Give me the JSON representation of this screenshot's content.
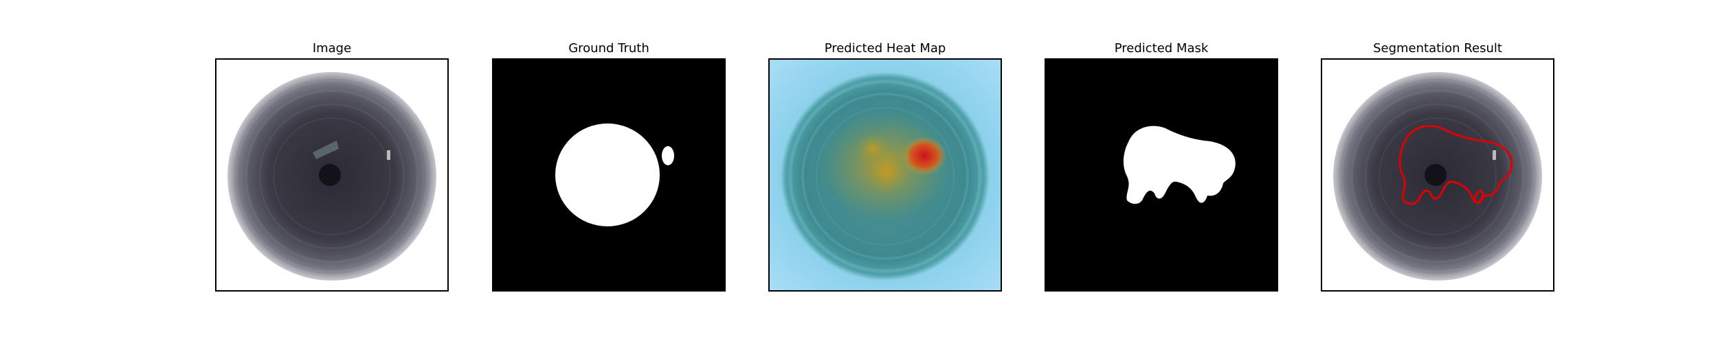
{
  "panels": [
    {
      "title": "Image"
    },
    {
      "title": "Ground Truth"
    },
    {
      "title": "Predicted Heat Map"
    },
    {
      "title": "Predicted Mask"
    },
    {
      "title": "Segmentation Result"
    }
  ],
  "colors": {
    "mask_fill": "#ffffff",
    "mask_background": "#000000",
    "contour": "#e00000",
    "heatmap_background": "#9dd8f3",
    "heatmap_hotspot": "#c8141e"
  }
}
